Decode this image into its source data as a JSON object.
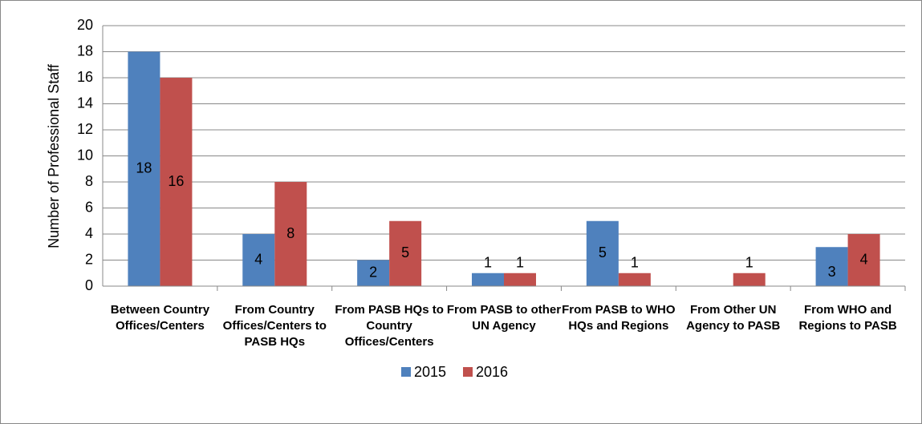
{
  "chart_data": {
    "type": "bar",
    "categories": [
      "Between Country Offices/Centers",
      "From Country Offices/Centers to PASB HQs",
      "From PASB HQs to Country Offices/Centers",
      "From PASB to other UN Agency",
      "From PASB to WHO HQs and Regions",
      "From Other UN Agency to PASB",
      "From WHO and Regions to PASB"
    ],
    "series": [
      {
        "name": "2015",
        "color": "#4f81bd",
        "values": [
          18,
          4,
          2,
          1,
          5,
          null,
          3
        ]
      },
      {
        "name": "2016",
        "color": "#c0504d",
        "values": [
          16,
          8,
          5,
          1,
          1,
          1,
          4
        ]
      }
    ],
    "y_label": "Number of Professional Staff",
    "ylim": [
      0,
      20
    ],
    "yticks": [
      0,
      2,
      4,
      6,
      8,
      10,
      12,
      14,
      16,
      18,
      20
    ],
    "grid": true,
    "legend": "bottom"
  }
}
